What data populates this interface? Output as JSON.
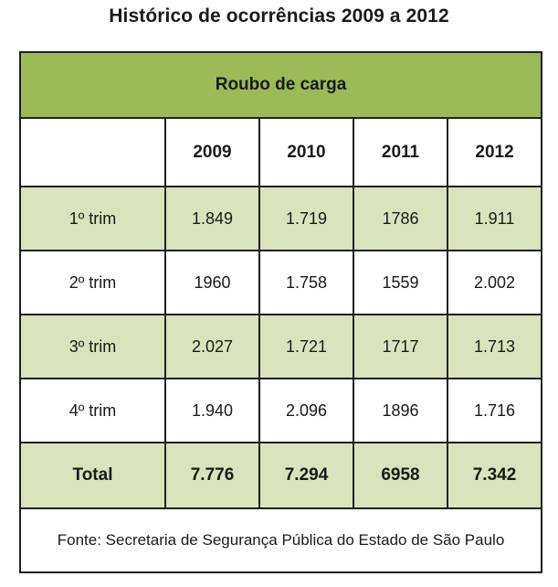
{
  "title": "Histórico de ocorrências 2009 a 2012",
  "colors": {
    "header_green": "#9bbb59",
    "row_shade": "#d7e4bc",
    "border": "#1f1f1f"
  },
  "chart_data": {
    "type": "table",
    "title": "Histórico de ocorrências 2009 a 2012",
    "subtitle": "Roubo de carga",
    "columns": [
      "2009",
      "2010",
      "2011",
      "2012"
    ],
    "rows": [
      {
        "label": "1º trim",
        "values": [
          "1.849",
          "1.719",
          "1786",
          "1.911"
        ]
      },
      {
        "label": "2º trim",
        "values": [
          "1960",
          "1.758",
          "1559",
          "2.002"
        ]
      },
      {
        "label": "3º trim",
        "values": [
          "2.027",
          "1.721",
          "1717",
          "1.713"
        ]
      },
      {
        "label": "4º trim",
        "values": [
          "1.940",
          "2.096",
          "1896",
          "1.716"
        ]
      }
    ],
    "total": {
      "label": "Total",
      "values": [
        "7.776",
        "7.294",
        "6958",
        "7.342"
      ]
    },
    "source": "Fonte: Secretaria de Segurança Pública do Estado de São Paulo"
  }
}
